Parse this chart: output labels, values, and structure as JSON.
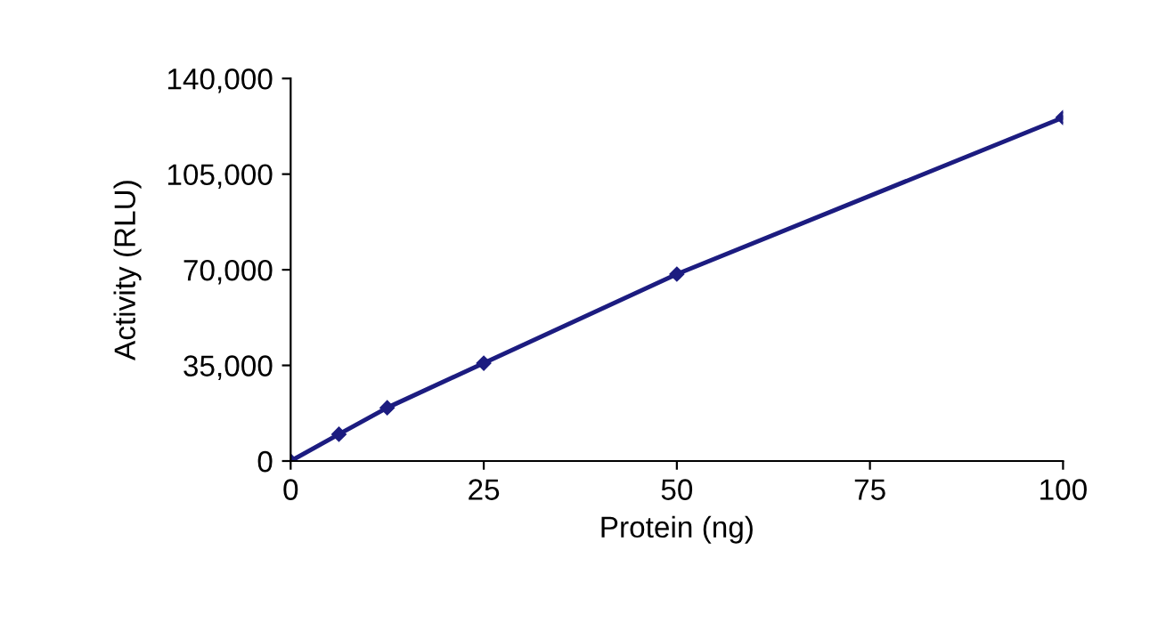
{
  "chart_data": {
    "type": "line",
    "xlabel": "Protein (ng)",
    "ylabel": "Activity (RLU)",
    "x": [
      0,
      6.25,
      12.5,
      25,
      50,
      100
    ],
    "series": [
      {
        "color": "#1c1c80",
        "values": [
          0,
          9800,
          19500,
          35800,
          68400,
          125700
        ]
      }
    ],
    "xlim": [
      0,
      100
    ],
    "xticks": [
      0,
      25,
      50,
      75,
      100
    ],
    "ylim": [
      0,
      140000
    ],
    "yticks": [
      {
        "value": 0,
        "label": "0"
      },
      {
        "value": 35000,
        "label": "35,000"
      },
      {
        "value": 70000,
        "label": "70,000"
      },
      {
        "value": 105000,
        "label": "105,000"
      },
      {
        "value": 140000,
        "label": "140,000"
      }
    ],
    "marker": "diamond",
    "line_style": "solid",
    "grid": false,
    "legend": false
  }
}
